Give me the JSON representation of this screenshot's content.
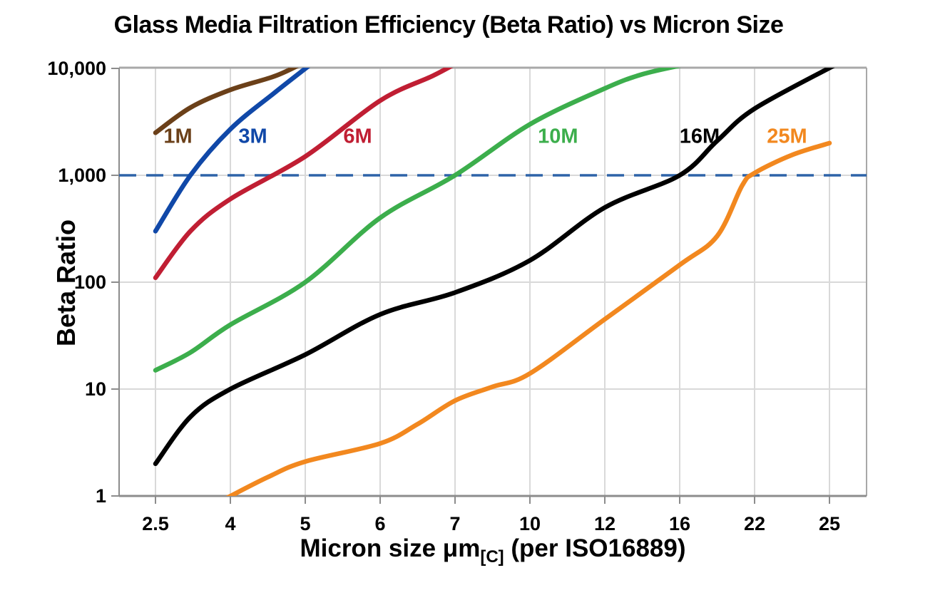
{
  "chart_data": {
    "type": "line",
    "title": "Glass Media Filtration Efficiency (Beta Ratio) vs Micron Size",
    "ylabel": "Beta Ratio",
    "xlabel_prefix": "Micron size μm",
    "xlabel_subscript": "[C]",
    "xlabel_suffix": " (per ISO16889)",
    "x_axis_type": "categorical-even-spacing",
    "x_ticks": [
      2.5,
      4,
      5,
      6,
      7,
      10,
      12,
      16,
      22,
      25
    ],
    "x_tick_labels": [
      "2.5",
      "4",
      "5",
      "6",
      "7",
      "10",
      "12",
      "16",
      "22",
      "25"
    ],
    "y_scale": "log",
    "ylim": [
      1,
      10000
    ],
    "y_ticks": [
      1,
      10,
      100,
      1000,
      10000
    ],
    "y_tick_labels": [
      "1",
      "10",
      "100",
      "1,000",
      "10,000"
    ],
    "grid": true,
    "legend_position": "inline-labels",
    "threshold_line": {
      "value": 1000,
      "style": "dashed",
      "color": "#2E63A8"
    },
    "series": [
      {
        "name": "1M",
        "color": "#6B4019",
        "label": {
          "micron": 2.95,
          "beta": 2350
        },
        "points": [
          [
            2.5,
            2500
          ],
          [
            3.2,
            4300
          ],
          [
            4,
            6300
          ],
          [
            4.6,
            8500
          ],
          [
            5,
            11500
          ]
        ]
      },
      {
        "name": "3M",
        "color": "#1048A8",
        "label": {
          "micron": 4.3,
          "beta": 2350
        },
        "points": [
          [
            2.5,
            300
          ],
          [
            3.2,
            1000
          ],
          [
            4,
            2700
          ],
          [
            4.6,
            6000
          ],
          [
            5.15,
            12000
          ]
        ]
      },
      {
        "name": "6M",
        "color": "#C01E33",
        "label": {
          "micron": 5.7,
          "beta": 2350
        },
        "points": [
          [
            2.5,
            110
          ],
          [
            3.2,
            300
          ],
          [
            4,
            600
          ],
          [
            5,
            1500
          ],
          [
            6,
            5000
          ],
          [
            6.7,
            8500
          ],
          [
            7.15,
            11500
          ]
        ]
      },
      {
        "name": "10M",
        "color": "#3CAE4C",
        "label": {
          "micron": 10.75,
          "beta": 2350
        },
        "points": [
          [
            2.5,
            15
          ],
          [
            3.2,
            22
          ],
          [
            4,
            40
          ],
          [
            5,
            100
          ],
          [
            6,
            400
          ],
          [
            7,
            1000
          ],
          [
            10,
            3000
          ],
          [
            12,
            6500
          ],
          [
            14,
            8800
          ],
          [
            16.3,
            10800
          ]
        ]
      },
      {
        "name": "16M",
        "color": "#000000",
        "label": {
          "micron": 17.6,
          "beta": 2350
        },
        "points": [
          [
            2.5,
            2
          ],
          [
            3.2,
            5.5
          ],
          [
            4,
            10
          ],
          [
            5,
            21
          ],
          [
            6,
            50
          ],
          [
            7,
            80
          ],
          [
            10,
            160
          ],
          [
            12,
            500
          ],
          [
            16,
            1000
          ],
          [
            19,
            2100
          ],
          [
            22,
            4200
          ],
          [
            25.3,
            11000
          ]
        ]
      },
      {
        "name": "25M",
        "color": "#F2881F",
        "label": {
          "micron": 23.3,
          "beta": 2350
        },
        "points": [
          [
            3.95,
            0.97
          ],
          [
            4.5,
            1.5
          ],
          [
            5,
            2.1
          ],
          [
            6,
            3.1
          ],
          [
            6.5,
            4.7
          ],
          [
            7,
            7.8
          ],
          [
            8.5,
            10.5
          ],
          [
            10,
            14
          ],
          [
            12,
            45
          ],
          [
            16,
            145
          ],
          [
            19,
            270
          ],
          [
            21,
            800
          ],
          [
            22,
            1050
          ],
          [
            23.5,
            1550
          ],
          [
            25,
            2000
          ]
        ]
      }
    ],
    "style": {
      "background": "#FFFFFF",
      "grid_color": "#D9D9D9",
      "border_color": "#A8A8A8",
      "axis_color": "#8C8C8C",
      "text_color": "#000000"
    }
  }
}
